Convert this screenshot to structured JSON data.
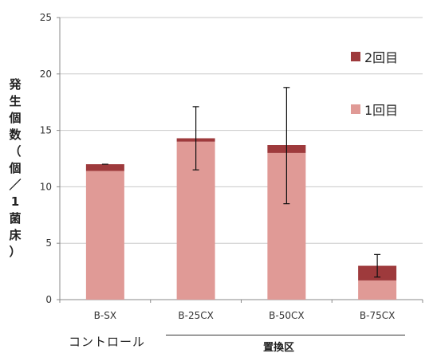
{
  "chart_data": {
    "type": "bar",
    "stacked": true,
    "categories": [
      "B-SX",
      "B-25CX",
      "B-50CX",
      "B-75CX"
    ],
    "series": [
      {
        "name": "1回目",
        "color": "#e09a96",
        "values": [
          11.4,
          14.0,
          13.0,
          1.7
        ]
      },
      {
        "name": "2回目",
        "color": "#9e3a3c",
        "values": [
          0.6,
          0.3,
          0.7,
          1.3
        ]
      }
    ],
    "error_bars": {
      "center": [
        12.0,
        14.3,
        13.7,
        3.0
      ],
      "low": [
        12.0,
        11.5,
        8.5,
        2.0
      ],
      "high": [
        12.0,
        17.1,
        18.8,
        4.0
      ]
    },
    "ylabel": "発生個数（個／1菌床）",
    "ylabel_chars": [
      "発",
      "生",
      "個",
      "数",
      "（",
      "個",
      "／",
      "1",
      "菌",
      "床",
      "）"
    ],
    "ylim": [
      0,
      25
    ],
    "yticks": [
      0,
      5,
      10,
      15,
      20,
      25
    ],
    "grid": true,
    "legend_placement": "right",
    "legend_order": [
      "2回目",
      "1回目"
    ],
    "group_labels": {
      "control": "コントロール",
      "replacement": "置換区"
    }
  }
}
